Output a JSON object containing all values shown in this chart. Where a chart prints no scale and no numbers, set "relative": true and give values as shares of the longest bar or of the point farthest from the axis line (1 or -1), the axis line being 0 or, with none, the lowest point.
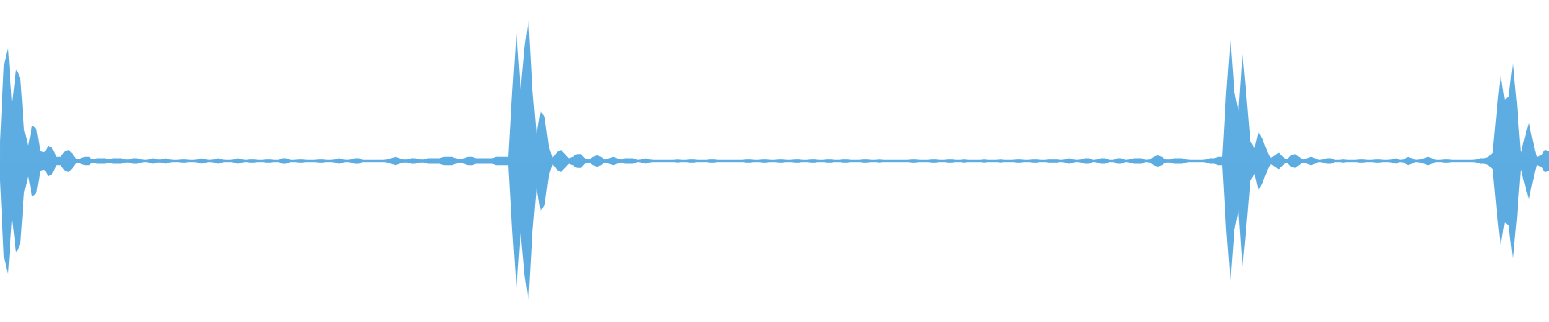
{
  "chart_data": {
    "type": "area",
    "relative": true,
    "ref_lines": [
      {
        "axis": "y",
        "value": 0,
        "color": "#5dade2"
      }
    ],
    "categories": [
      null,
      null,
      null,
      null,
      null,
      null,
      null,
      null,
      null,
      null,
      null,
      null,
      null,
      null,
      null,
      null,
      null,
      null,
      null,
      null,
      null,
      null,
      null,
      null,
      null,
      null,
      null,
      null,
      null,
      null,
      null,
      null,
      null,
      null,
      null,
      null,
      null,
      null,
      null,
      null,
      null,
      null,
      null,
      null,
      null,
      null,
      null,
      null,
      null,
      null,
      null,
      null,
      null,
      null,
      null,
      null,
      null,
      null,
      null,
      null,
      null,
      null,
      null,
      null,
      null,
      null,
      null,
      null,
      null,
      null,
      null,
      null,
      null,
      null,
      null,
      null,
      null,
      null,
      null,
      null,
      null,
      null,
      null,
      null,
      null,
      null,
      null,
      null,
      null,
      null,
      null,
      null,
      null,
      null,
      null,
      null,
      null,
      null,
      null,
      null,
      null,
      null,
      null,
      null,
      null,
      null,
      null,
      null,
      null,
      null,
      null,
      null,
      null,
      null,
      null,
      null,
      null,
      null,
      null,
      null,
      null,
      null,
      null,
      null,
      null,
      null,
      null,
      null,
      null,
      null,
      null,
      null,
      null,
      null,
      null,
      null,
      null,
      null,
      null,
      null,
      null,
      null,
      null,
      null,
      null,
      null,
      null,
      null,
      null,
      null,
      null,
      null,
      null,
      null,
      null,
      null,
      null,
      null,
      null,
      null,
      null,
      null,
      null,
      null,
      null,
      null,
      null,
      null,
      null,
      null,
      null,
      null,
      null,
      null,
      null,
      null,
      null,
      null,
      null,
      null,
      null,
      null,
      null,
      null,
      null,
      null,
      null,
      null,
      null,
      null,
      null,
      null,
      null,
      null,
      null,
      null,
      null,
      null,
      null,
      null,
      null,
      null,
      null,
      null,
      null,
      null,
      null,
      null,
      null,
      null,
      null,
      null,
      null,
      null,
      null,
      null,
      null,
      null,
      null,
      null,
      null,
      null,
      null,
      null,
      null,
      null,
      null,
      null,
      null,
      null,
      null,
      null,
      null,
      null,
      null,
      null,
      null,
      null,
      null,
      null,
      null,
      null,
      null,
      null,
      null,
      null,
      null,
      null,
      null,
      null,
      null,
      null,
      null,
      null,
      null,
      null,
      null,
      null,
      null,
      null,
      null,
      null,
      null,
      null,
      null,
      null,
      null,
      null,
      null,
      null,
      null,
      null,
      null,
      null,
      null,
      null,
      null,
      null,
      null,
      null,
      null,
      null,
      null,
      null,
      null,
      null,
      null,
      null,
      null,
      null,
      null,
      null,
      null,
      null,
      null,
      null,
      null,
      null,
      null,
      null,
      null,
      null,
      null,
      null,
      null,
      null,
      null,
      null,
      null,
      null,
      null,
      null,
      null,
      null,
      null,
      null,
      null,
      null,
      null,
      null,
      null,
      null,
      null,
      null,
      null,
      null,
      null,
      null,
      null,
      null,
      null,
      null,
      null,
      null,
      null,
      null,
      null,
      null,
      null,
      null,
      null,
      null,
      null,
      null,
      null,
      null,
      null,
      null,
      null,
      null,
      null,
      null,
      null,
      null,
      null,
      null,
      null,
      null,
      null,
      null,
      null,
      null,
      null,
      null,
      null,
      null,
      null,
      null,
      null,
      null,
      null,
      null,
      null,
      null,
      null,
      null,
      null,
      null,
      null,
      null,
      null,
      null,
      null,
      null,
      null
    ],
    "series": [
      {
        "color": "#5dade2",
        "values": [
          0.14,
          0.69,
          0.8,
          0.42,
          0.65,
          0.59,
          0.22,
          0.11,
          0.25,
          0.23,
          0.07,
          0.06,
          0.11,
          0.09,
          0.03,
          0.03,
          0.07,
          0.08,
          0.05,
          0.01,
          0.02,
          0.03,
          0.03,
          0.01,
          0.02,
          0.02,
          0.02,
          0.01,
          0.02,
          0.02,
          0.02,
          0.01,
          0.01,
          0.02,
          0.02,
          0.01,
          0.005,
          0.01,
          0.02,
          0.01,
          0.01,
          0.02,
          0.01,
          0.005,
          0.005,
          0.01,
          0.01,
          0.005,
          0.005,
          0.01,
          0.02,
          0.01,
          0.005,
          0.01,
          0.02,
          0.01,
          0.005,
          0.005,
          0.01,
          0.02,
          0.01,
          0.005,
          0.01,
          0.01,
          0.005,
          0.005,
          0.01,
          0.01,
          0.005,
          0.005,
          0.02,
          0.02,
          0.005,
          0.005,
          0.01,
          0.01,
          0.005,
          0.005,
          0.005,
          0.01,
          0.01,
          0.005,
          0.005,
          0.01,
          0.02,
          0.01,
          0.005,
          0.01,
          0.02,
          0.02,
          0.005,
          0.005,
          0.005,
          0.005,
          0.005,
          0.005,
          0.01,
          0.02,
          0.03,
          0.02,
          0.01,
          0.01,
          0.02,
          0.02,
          0.01,
          0.01,
          0.02,
          0.02,
          0.02,
          0.02,
          0.03,
          0.03,
          0.03,
          0.02,
          0.01,
          0.02,
          0.03,
          0.03,
          0.02,
          0.02,
          0.02,
          0.02,
          0.02,
          0.03,
          0.03,
          0.03,
          0.03,
          0.49,
          0.91,
          0.51,
          0.8,
          1,
          0.51,
          0.19,
          0.36,
          0.31,
          0.11,
          0.02,
          0.06,
          0.08,
          0.05,
          0.02,
          0.03,
          0.05,
          0.05,
          0.02,
          0.01,
          0.03,
          0.04,
          0.03,
          0.01,
          0.02,
          0.03,
          0.02,
          0.01,
          0.02,
          0.02,
          0.02,
          0.005,
          0.01,
          0.02,
          0.01,
          0.005,
          0.005,
          0.005,
          0.005,
          0.005,
          0.005,
          0.01,
          0.005,
          0.005,
          0.01,
          0.01,
          0.005,
          0.005,
          0.005,
          0.01,
          0.01,
          0.005,
          0.005,
          0.005,
          0.005,
          0.005,
          0.005,
          0.005,
          0.01,
          0.01,
          0.005,
          0.005,
          0.01,
          0.01,
          0.005,
          0.005,
          0.01,
          0.01,
          0.005,
          0.005,
          0.01,
          0.01,
          0.005,
          0.005,
          0.01,
          0.01,
          0.005,
          0.005,
          0.01,
          0.01,
          0.005,
          0.005,
          0.01,
          0.01,
          0.005,
          0.005,
          0.005,
          0.01,
          0.01,
          0.005,
          0.005,
          0.01,
          0.005,
          0.005,
          0.005,
          0.005,
          0.005,
          0.005,
          0.005,
          0.01,
          0.01,
          0.005,
          0.005,
          0.005,
          0.01,
          0.01,
          0.005,
          0.005,
          0.01,
          0.01,
          0.005,
          0.005,
          0.01,
          0.005,
          0.005,
          0.005,
          0.005,
          0.01,
          0.005,
          0.005,
          0.005,
          0.01,
          0.005,
          0.005,
          0.005,
          0.01,
          0.01,
          0.005,
          0.005,
          0.01,
          0.01,
          0.005,
          0.005,
          0.01,
          0.01,
          0.01,
          0.005,
          0.01,
          0.02,
          0.01,
          0.005,
          0.01,
          0.02,
          0.02,
          0.005,
          0.01,
          0.02,
          0.02,
          0.005,
          0.005,
          0.02,
          0.02,
          0.005,
          0.01,
          0.02,
          0.02,
          0.02,
          0.005,
          0.01,
          0.03,
          0.04,
          0.03,
          0.01,
          0.01,
          0.02,
          0.02,
          0.02,
          0.01,
          0.005,
          0.005,
          0.005,
          0.005,
          0.01,
          0.02,
          0.02,
          0.03,
          0.03,
          0.49,
          0.86,
          0.49,
          0.35,
          0.76,
          0.46,
          0.14,
          0.09,
          0.21,
          0.15,
          0.08,
          0.02,
          0.04,
          0.06,
          0.03,
          0.01,
          0.04,
          0.05,
          0.03,
          0.01,
          0.02,
          0.03,
          0.02,
          0.005,
          0.01,
          0.02,
          0.02,
          0.005,
          0.005,
          0.01,
          0.005,
          0.005,
          0.005,
          0.01,
          0.01,
          0.005,
          0.005,
          0.01,
          0.01,
          0.005,
          0.005,
          0.01,
          0.02,
          0.005,
          0.01,
          0.03,
          0.02,
          0.005,
          0.01,
          0.02,
          0.03,
          0.02,
          0.005,
          0.005,
          0.01,
          0.01,
          0.005,
          0.005,
          0.005,
          0.005,
          0.005,
          0.005,
          0.01,
          0.02,
          0.02,
          0.03,
          0.06,
          0.35,
          0.61,
          0.43,
          0.46,
          0.69,
          0.41,
          0.06,
          0.17,
          0.27,
          0.14,
          0.03,
          0.04,
          0.08,
          0.07
        ]
      },
      {
        "color": "#5cace1",
        "values": [
          -0.14,
          -0.69,
          -0.8,
          -0.42,
          -0.65,
          -0.59,
          -0.22,
          -0.11,
          -0.25,
          -0.23,
          -0.07,
          -0.06,
          -0.11,
          -0.09,
          -0.03,
          -0.03,
          -0.07,
          -0.08,
          -0.05,
          -0.01,
          -0.02,
          -0.03,
          -0.03,
          -0.01,
          -0.02,
          -0.02,
          -0.02,
          -0.01,
          -0.02,
          -0.02,
          -0.02,
          -0.01,
          -0.01,
          -0.02,
          -0.02,
          -0.01,
          -0.005,
          -0.01,
          -0.02,
          -0.01,
          -0.01,
          -0.02,
          -0.01,
          -0.005,
          -0.005,
          -0.01,
          -0.01,
          -0.005,
          -0.005,
          -0.01,
          -0.02,
          -0.01,
          -0.005,
          -0.01,
          -0.02,
          -0.01,
          -0.005,
          -0.005,
          -0.01,
          -0.02,
          -0.01,
          -0.005,
          -0.01,
          -0.01,
          -0.005,
          -0.005,
          -0.01,
          -0.01,
          -0.005,
          -0.005,
          -0.02,
          -0.02,
          -0.005,
          -0.005,
          -0.01,
          -0.01,
          -0.005,
          -0.005,
          -0.005,
          -0.01,
          -0.01,
          -0.005,
          -0.005,
          -0.01,
          -0.02,
          -0.01,
          -0.005,
          -0.01,
          -0.02,
          -0.02,
          -0.005,
          -0.005,
          -0.005,
          -0.005,
          -0.005,
          -0.005,
          -0.01,
          -0.02,
          -0.03,
          -0.02,
          -0.01,
          -0.01,
          -0.02,
          -0.02,
          -0.01,
          -0.01,
          -0.02,
          -0.02,
          -0.02,
          -0.02,
          -0.03,
          -0.03,
          -0.03,
          -0.02,
          -0.01,
          -0.02,
          -0.03,
          -0.03,
          -0.02,
          -0.02,
          -0.02,
          -0.02,
          -0.02,
          -0.03,
          -0.03,
          -0.03,
          -0.03,
          -0.49,
          -0.9,
          -0.51,
          -0.8,
          -0.99,
          -0.51,
          -0.19,
          -0.36,
          -0.31,
          -0.11,
          -0.02,
          -0.06,
          -0.08,
          -0.05,
          -0.02,
          -0.03,
          -0.05,
          -0.05,
          -0.02,
          -0.01,
          -0.03,
          -0.04,
          -0.03,
          -0.01,
          -0.02,
          -0.03,
          -0.02,
          -0.01,
          -0.02,
          -0.02,
          -0.02,
          -0.005,
          -0.01,
          -0.02,
          -0.01,
          -0.005,
          -0.005,
          -0.005,
          -0.005,
          -0.005,
          -0.005,
          -0.01,
          -0.005,
          -0.005,
          -0.01,
          -0.01,
          -0.005,
          -0.005,
          -0.005,
          -0.01,
          -0.01,
          -0.005,
          -0.005,
          -0.005,
          -0.005,
          -0.005,
          -0.005,
          -0.005,
          -0.01,
          -0.01,
          -0.005,
          -0.005,
          -0.01,
          -0.01,
          -0.005,
          -0.005,
          -0.01,
          -0.01,
          -0.005,
          -0.005,
          -0.01,
          -0.01,
          -0.005,
          -0.005,
          -0.01,
          -0.01,
          -0.005,
          -0.005,
          -0.01,
          -0.01,
          -0.005,
          -0.005,
          -0.01,
          -0.01,
          -0.005,
          -0.005,
          -0.005,
          -0.01,
          -0.01,
          -0.005,
          -0.005,
          -0.01,
          -0.005,
          -0.005,
          -0.005,
          -0.005,
          -0.005,
          -0.005,
          -0.005,
          -0.01,
          -0.01,
          -0.005,
          -0.005,
          -0.005,
          -0.01,
          -0.01,
          -0.005,
          -0.005,
          -0.01,
          -0.01,
          -0.005,
          -0.005,
          -0.01,
          -0.005,
          -0.005,
          -0.005,
          -0.005,
          -0.01,
          -0.005,
          -0.005,
          -0.005,
          -0.01,
          -0.005,
          -0.005,
          -0.005,
          -0.01,
          -0.01,
          -0.005,
          -0.005,
          -0.01,
          -0.01,
          -0.005,
          -0.005,
          -0.01,
          -0.01,
          -0.01,
          -0.005,
          -0.01,
          -0.02,
          -0.01,
          -0.005,
          -0.01,
          -0.02,
          -0.02,
          -0.005,
          -0.01,
          -0.02,
          -0.02,
          -0.005,
          -0.005,
          -0.02,
          -0.02,
          -0.005,
          -0.01,
          -0.02,
          -0.02,
          -0.02,
          -0.005,
          -0.01,
          -0.03,
          -0.04,
          -0.03,
          -0.01,
          -0.01,
          -0.02,
          -0.02,
          -0.02,
          -0.01,
          -0.005,
          -0.005,
          -0.005,
          -0.005,
          -0.01,
          -0.02,
          -0.02,
          -0.03,
          -0.03,
          -0.49,
          -0.85,
          -0.49,
          -0.35,
          -0.75,
          -0.46,
          -0.14,
          -0.09,
          -0.21,
          -0.15,
          -0.08,
          -0.02,
          -0.04,
          -0.06,
          -0.03,
          -0.01,
          -0.04,
          -0.05,
          -0.03,
          -0.01,
          -0.02,
          -0.03,
          -0.02,
          -0.005,
          -0.01,
          -0.02,
          -0.02,
          -0.005,
          -0.005,
          -0.01,
          -0.005,
          -0.005,
          -0.005,
          -0.01,
          -0.01,
          -0.005,
          -0.005,
          -0.01,
          -0.01,
          -0.005,
          -0.005,
          -0.01,
          -0.02,
          -0.005,
          -0.01,
          -0.03,
          -0.02,
          -0.005,
          -0.01,
          -0.02,
          -0.03,
          -0.02,
          -0.005,
          -0.005,
          -0.01,
          -0.01,
          -0.005,
          -0.005,
          -0.005,
          -0.005,
          -0.005,
          -0.005,
          -0.01,
          -0.02,
          -0.02,
          -0.03,
          -0.06,
          -0.35,
          -0.6,
          -0.43,
          -0.46,
          -0.69,
          -0.41,
          -0.06,
          -0.17,
          -0.27,
          -0.14,
          -0.03,
          -0.04,
          -0.08,
          -0.07
        ]
      }
    ]
  }
}
